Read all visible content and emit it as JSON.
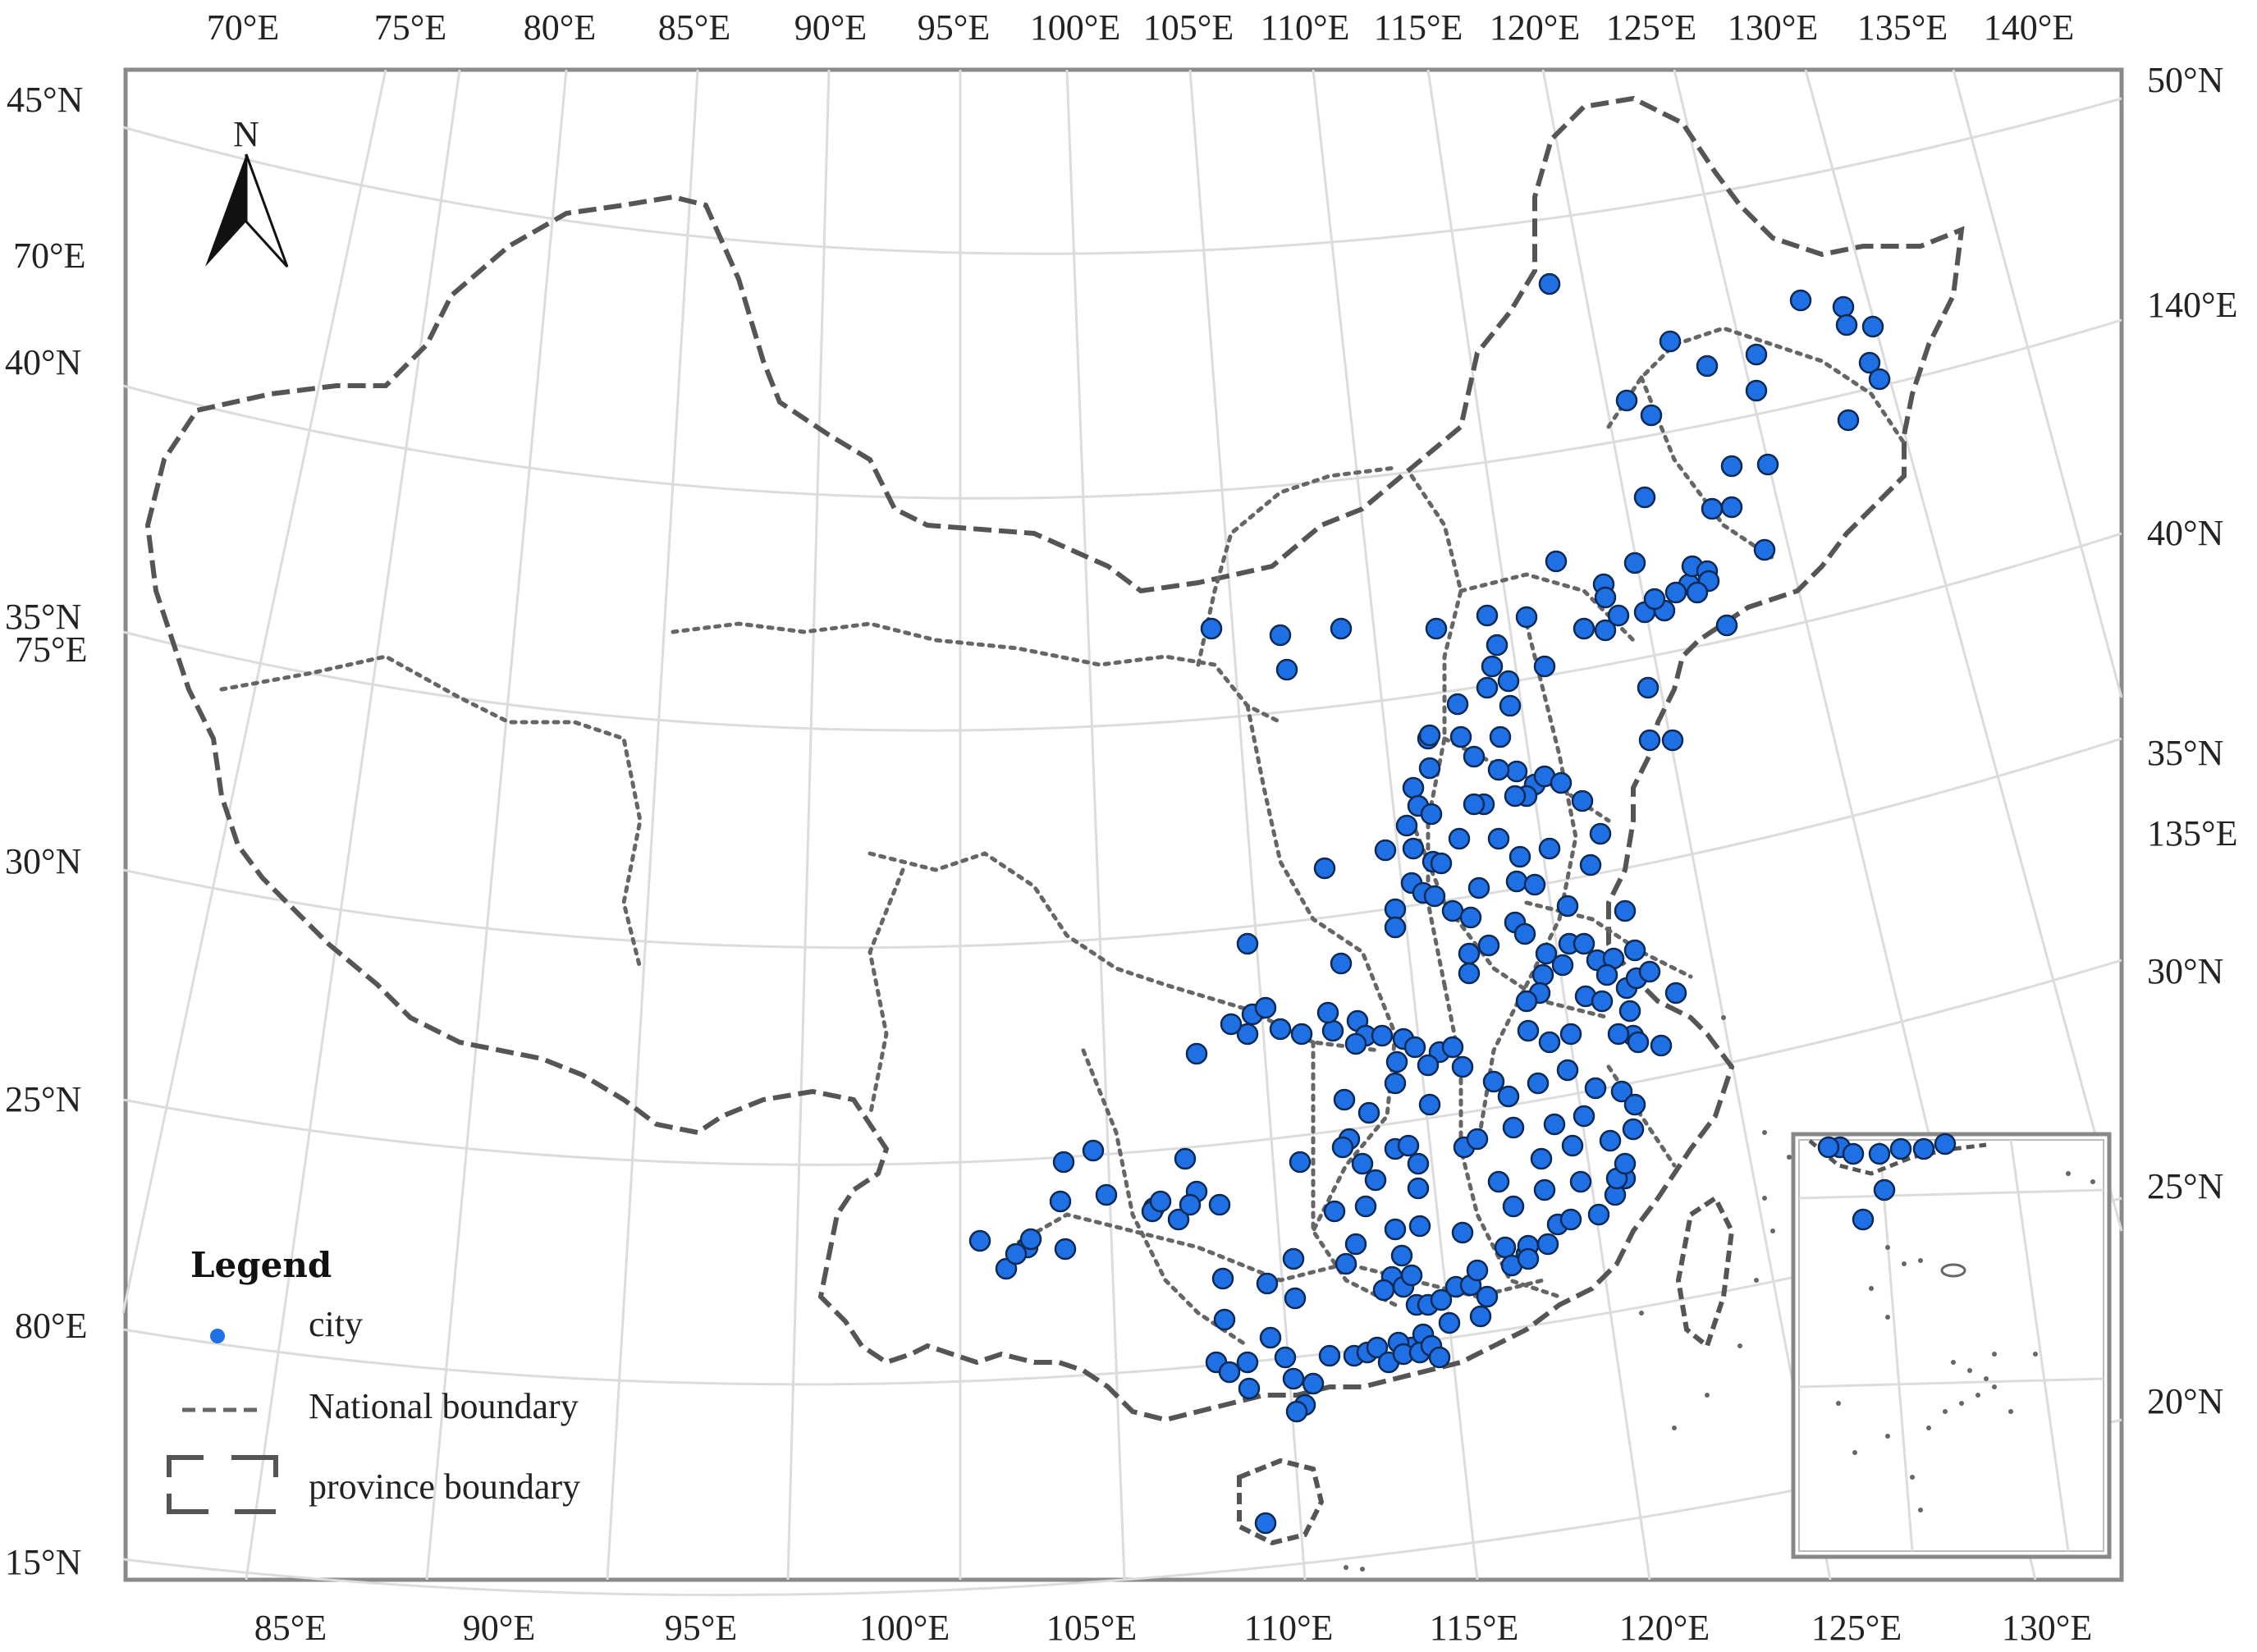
{
  "map": {
    "north_arrow_label": "N",
    "top_longitude_labels": [
      "70°E",
      "75°E",
      "80°E",
      "85°E",
      "90°E",
      "95°E",
      "100°E",
      "105°E",
      "110°E",
      "115°E",
      "120°E",
      "125°E",
      "130°E",
      "135°E",
      "140°E"
    ],
    "bottom_longitude_labels": [
      "85°E",
      "90°E",
      "95°E",
      "100°E",
      "105°E",
      "110°E",
      "115°E",
      "120°E",
      "125°E",
      "130°E"
    ],
    "left_labels": [
      "45°N",
      "70°E",
      "40°N",
      "35°N",
      "75°E",
      "30°N",
      "25°N",
      "80°E",
      "15°N"
    ],
    "right_labels": [
      "50°N",
      "140°E",
      "40°N",
      "35°N",
      "135°E",
      "30°N",
      "25°N",
      "20°N"
    ],
    "colors": {
      "city_fill": "#1f6fe5",
      "city_stroke": "#0d2a55",
      "boundary": "#555555",
      "graticule": "#d9d9d9",
      "frame": "#8a8a8a"
    },
    "icons": [
      "north-arrow-icon",
      "city-marker-icon",
      "national-boundary-icon",
      "province-boundary-icon"
    ]
  },
  "legend": {
    "title": "Legend",
    "items": [
      {
        "label": "city",
        "icon": "city-marker-icon"
      },
      {
        "label": "National boundary",
        "icon": "national-boundary-icon"
      },
      {
        "label": "province boundary",
        "icon": "province-boundary-icon"
      }
    ]
  }
}
